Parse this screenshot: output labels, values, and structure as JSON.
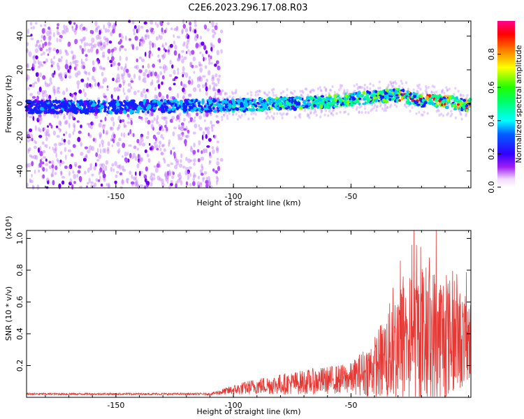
{
  "title": "C2E6.2023.296.17.08.R03",
  "chart_data": [
    {
      "type": "heatmap",
      "xlabel": "Height of straight line (km)",
      "ylabel": "Frequency (Hz)",
      "xlim": [
        -188,
        1
      ],
      "ylim": [
        -50,
        49
      ],
      "xticks": [
        -150,
        -100,
        -50
      ],
      "yticks": [
        -40,
        -20,
        0,
        20,
        40
      ],
      "ridge_freq": [
        {
          "x": -188,
          "y": -2
        },
        {
          "x": -150,
          "y": -2
        },
        {
          "x": -100,
          "y": -1
        },
        {
          "x": -80,
          "y": 0
        },
        {
          "x": -60,
          "y": 1
        },
        {
          "x": -40,
          "y": 4
        },
        {
          "x": -30,
          "y": 5
        },
        {
          "x": -20,
          "y": 2
        },
        {
          "x": -10,
          "y": 1
        },
        {
          "x": 0,
          "y": -1
        }
      ],
      "colorbar": {
        "label": "Normalized spectral amplitude",
        "range": [
          0,
          1
        ],
        "ticks": [
          "0.0",
          "0.2",
          "0.4",
          "0.6",
          "0.8"
        ],
        "colormap": "hsv-reverse"
      }
    },
    {
      "type": "line",
      "xlabel": "Height of straight line (km)",
      "ylabel": "SNR (10 * v/v)",
      "multiplier": "(x10⁴)",
      "xlim": [
        -188,
        1
      ],
      "ylim": [
        0,
        1.05
      ],
      "xticks": [
        -150,
        -100,
        -50
      ],
      "yticks": [
        "0.2",
        "0.4",
        "0.6",
        "0.8",
        "1.0"
      ],
      "color": "#e53935",
      "envelope": [
        {
          "x": -188,
          "base": 0.02,
          "amp": 0.01
        },
        {
          "x": -110,
          "base": 0.02,
          "amp": 0.01
        },
        {
          "x": -100,
          "base": 0.04,
          "amp": 0.05
        },
        {
          "x": -90,
          "base": 0.06,
          "amp": 0.08
        },
        {
          "x": -70,
          "base": 0.08,
          "amp": 0.12
        },
        {
          "x": -50,
          "base": 0.1,
          "amp": 0.15
        },
        {
          "x": -40,
          "base": 0.15,
          "amp": 0.3
        },
        {
          "x": -30,
          "base": 0.25,
          "amp": 0.6
        },
        {
          "x": -20,
          "base": 0.3,
          "amp": 0.7
        },
        {
          "x": -10,
          "base": 0.3,
          "amp": 0.65
        },
        {
          "x": 0,
          "base": 0.3,
          "amp": 0.4
        }
      ]
    }
  ]
}
